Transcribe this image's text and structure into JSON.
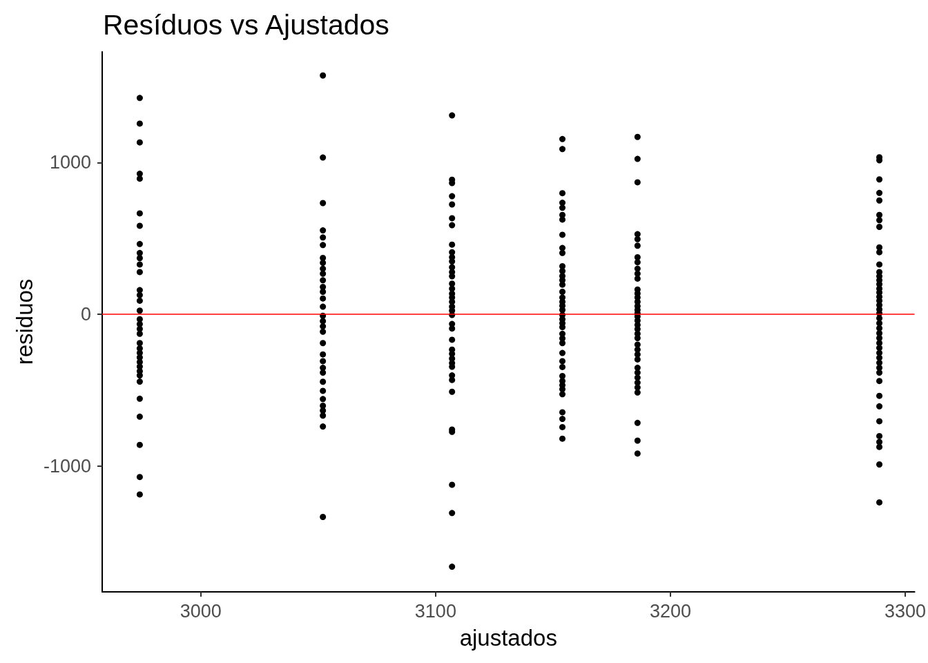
{
  "chart_data": {
    "type": "scatter",
    "title": "Resíduos vs Ajustados",
    "xlabel": "ajustados",
    "ylabel": "residuos",
    "x": [
      2974,
      2974,
      2974,
      2974,
      2974,
      2974,
      2974,
      2974,
      2974,
      2974,
      2974,
      2974,
      2974,
      2974,
      2974,
      2974,
      2974,
      2974,
      2974,
      2974,
      2974,
      2974,
      2974,
      2974,
      2974,
      2974,
      2974,
      2974,
      2974,
      2974,
      2974,
      2974,
      2974,
      2974,
      3052,
      3052,
      3052,
      3052,
      3052,
      3052,
      3052,
      3052,
      3052,
      3052,
      3052,
      3052,
      3052,
      3052,
      3052,
      3052,
      3052,
      3052,
      3052,
      3052,
      3052,
      3052,
      3052,
      3052,
      3052,
      3052,
      3052,
      3052,
      3052,
      3052,
      3052,
      3052,
      3107,
      3107,
      3107,
      3107,
      3107,
      3107,
      3107,
      3107,
      3107,
      3107,
      3107,
      3107,
      3107,
      3107,
      3107,
      3107,
      3107,
      3107,
      3107,
      3107,
      3107,
      3107,
      3107,
      3107,
      3107,
      3107,
      3107,
      3107,
      3107,
      3107,
      3107,
      3107,
      3107,
      3107,
      3107,
      3107,
      3107,
      3107,
      3154,
      3154,
      3154,
      3154,
      3154,
      3154,
      3154,
      3154,
      3154,
      3154,
      3154,
      3154,
      3154,
      3154,
      3154,
      3154,
      3154,
      3154,
      3154,
      3154,
      3154,
      3154,
      3154,
      3154,
      3154,
      3154,
      3154,
      3154,
      3154,
      3154,
      3154,
      3154,
      3154,
      3154,
      3154,
      3154,
      3154,
      3154,
      3154,
      3186,
      3186,
      3186,
      3186,
      3186,
      3186,
      3186,
      3186,
      3186,
      3186,
      3186,
      3186,
      3186,
      3186,
      3186,
      3186,
      3186,
      3186,
      3186,
      3186,
      3186,
      3186,
      3186,
      3186,
      3186,
      3186,
      3186,
      3186,
      3186,
      3186,
      3186,
      3186,
      3186,
      3186,
      3186,
      3186,
      3186,
      3289,
      3289,
      3289,
      3289,
      3289,
      3289,
      3289,
      3289,
      3289,
      3289,
      3289,
      3289,
      3289,
      3289,
      3289,
      3289,
      3289,
      3289,
      3289,
      3289,
      3289,
      3289,
      3289,
      3289,
      3289,
      3289,
      3289,
      3289,
      3289,
      3289,
      3289,
      3289,
      3289,
      3289,
      3289,
      3289,
      3289,
      3289,
      3289,
      3289,
      3289,
      3289,
      3289
    ],
    "values": [
      1426,
      1257,
      1133,
      926,
      894,
      665,
      583,
      463,
      404,
      370,
      328,
      278,
      159,
      126,
      89,
      24,
      -33,
      -65,
      -97,
      -129,
      -190,
      -225,
      -255,
      -285,
      -315,
      -345,
      -375,
      -403,
      -444,
      -557,
      -675,
      -861,
      -1073,
      -1188,
      1574,
      1033,
      733,
      553,
      506,
      456,
      371,
      339,
      300,
      267,
      224,
      180,
      148,
      104,
      50,
      -10,
      -45,
      -80,
      -115,
      -190,
      -265,
      -309,
      -353,
      -385,
      -445,
      -505,
      -559,
      -603,
      -635,
      -668,
      -740,
      -1336,
      1311,
      887,
      865,
      778,
      724,
      633,
      587,
      459,
      409,
      376,
      348,
      310,
      278,
      250,
      202,
      169,
      136,
      110,
      82,
      50,
      24,
      -5,
      -64,
      -94,
      -168,
      -233,
      -261,
      -292,
      -322,
      -346,
      -403,
      -433,
      -511,
      -760,
      -775,
      -1124,
      -1310,
      -1664,
      1155,
      1089,
      798,
      735,
      702,
      655,
      624,
      524,
      437,
      404,
      317,
      285,
      252,
      224,
      195,
      148,
      110,
      82,
      56,
      28,
      -5,
      -33,
      -59,
      -85,
      -129,
      -159,
      -190,
      -255,
      -309,
      -348,
      -407,
      -440,
      -468,
      -494,
      -527,
      -646,
      -690,
      -744,
      -820,
      1169,
      1024,
      870,
      528,
      495,
      452,
      376,
      343,
      300,
      267,
      235,
      163,
      137,
      110,
      82,
      54,
      28,
      6,
      -15,
      -42,
      -70,
      -98,
      -129,
      -157,
      -200,
      -233,
      -265,
      -298,
      -353,
      -385,
      -418,
      -451,
      -483,
      -516,
      -716,
      -833,
      -918,
      1035,
      1015,
      889,
      800,
      750,
      655,
      620,
      576,
      441,
      409,
      328,
      278,
      250,
      224,
      198,
      169,
      143,
      115,
      89,
      60,
      32,
      6,
      -26,
      -59,
      -92,
      -125,
      -157,
      -190,
      -222,
      -255,
      -287,
      -320,
      -353,
      -385,
      -440,
      -538,
      -607,
      -705,
      -803,
      -842,
      -875,
      -990,
      -1240
    ],
    "color": "#000000",
    "marker": "circle",
    "xlim": [
      2958,
      3304
    ],
    "xticks": [
      3000,
      3100,
      3200,
      3300
    ],
    "ylim": [
      -1830,
      1730
    ],
    "yticks": [
      -1000,
      0,
      1000
    ],
    "ref_lines": [
      {
        "axis": "y",
        "value": 0,
        "color": "#ff0000",
        "line_style": "solid"
      }
    ]
  }
}
